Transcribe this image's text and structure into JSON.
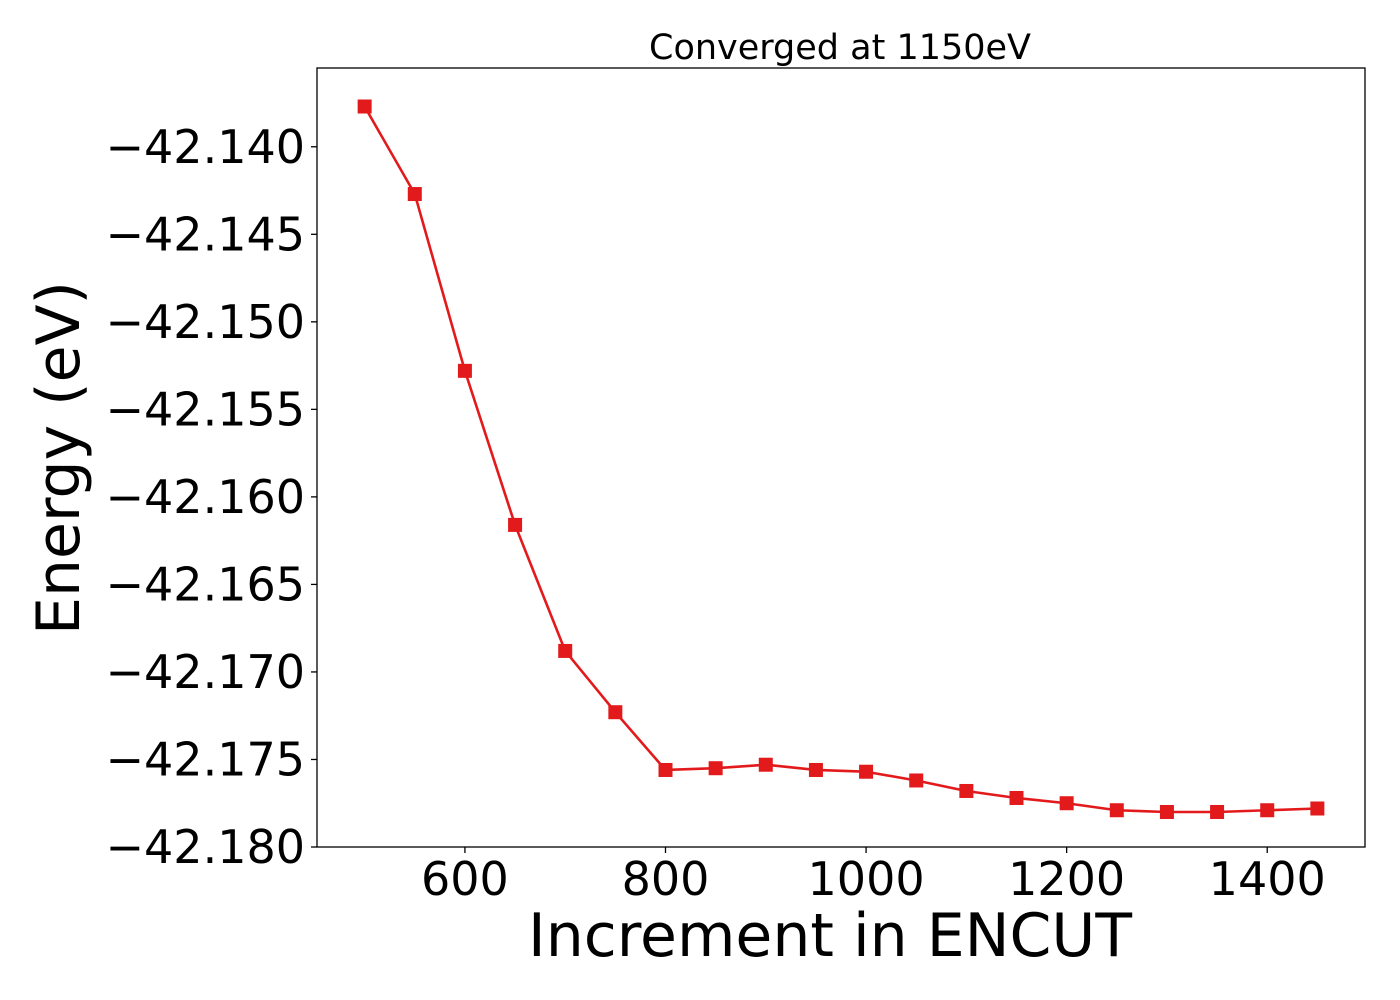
{
  "chart_data": {
    "type": "line",
    "title": "Converged at 1150eV",
    "xlabel": "Increment in ENCUT",
    "ylabel": "Energy (eV)",
    "xlim": [
      452.5,
      1497.5
    ],
    "ylim": [
      -42.18,
      -42.1355
    ],
    "xticks": [
      600,
      800,
      1000,
      1200,
      1400
    ],
    "xtick_labels": [
      "600",
      "800",
      "1000",
      "1200",
      "1400"
    ],
    "yticks": [
      -42.14,
      -42.145,
      -42.15,
      -42.155,
      -42.16,
      -42.165,
      -42.17,
      -42.175,
      -42.18
    ],
    "ytick_labels": [
      "−42.140",
      "−42.145",
      "−42.150",
      "−42.155",
      "−42.160",
      "−42.165",
      "−42.170",
      "−42.175",
      "−42.180"
    ],
    "grid": false,
    "series": [
      {
        "color": "#e31a1c",
        "marker": "square",
        "x": [
          500,
          550,
          600,
          650,
          700,
          750,
          800,
          850,
          900,
          950,
          1000,
          1050,
          1100,
          1150,
          1200,
          1250,
          1300,
          1350,
          1400,
          1450
        ],
        "y": [
          -42.1377,
          -42.1427,
          -42.1528,
          -42.1616,
          -42.1688,
          -42.1723,
          -42.1756,
          -42.1755,
          -42.1753,
          -42.1756,
          -42.1757,
          -42.1762,
          -42.1768,
          -42.1772,
          -42.1775,
          -42.1779,
          -42.178,
          -42.178,
          -42.1779,
          -42.1778
        ]
      }
    ]
  }
}
